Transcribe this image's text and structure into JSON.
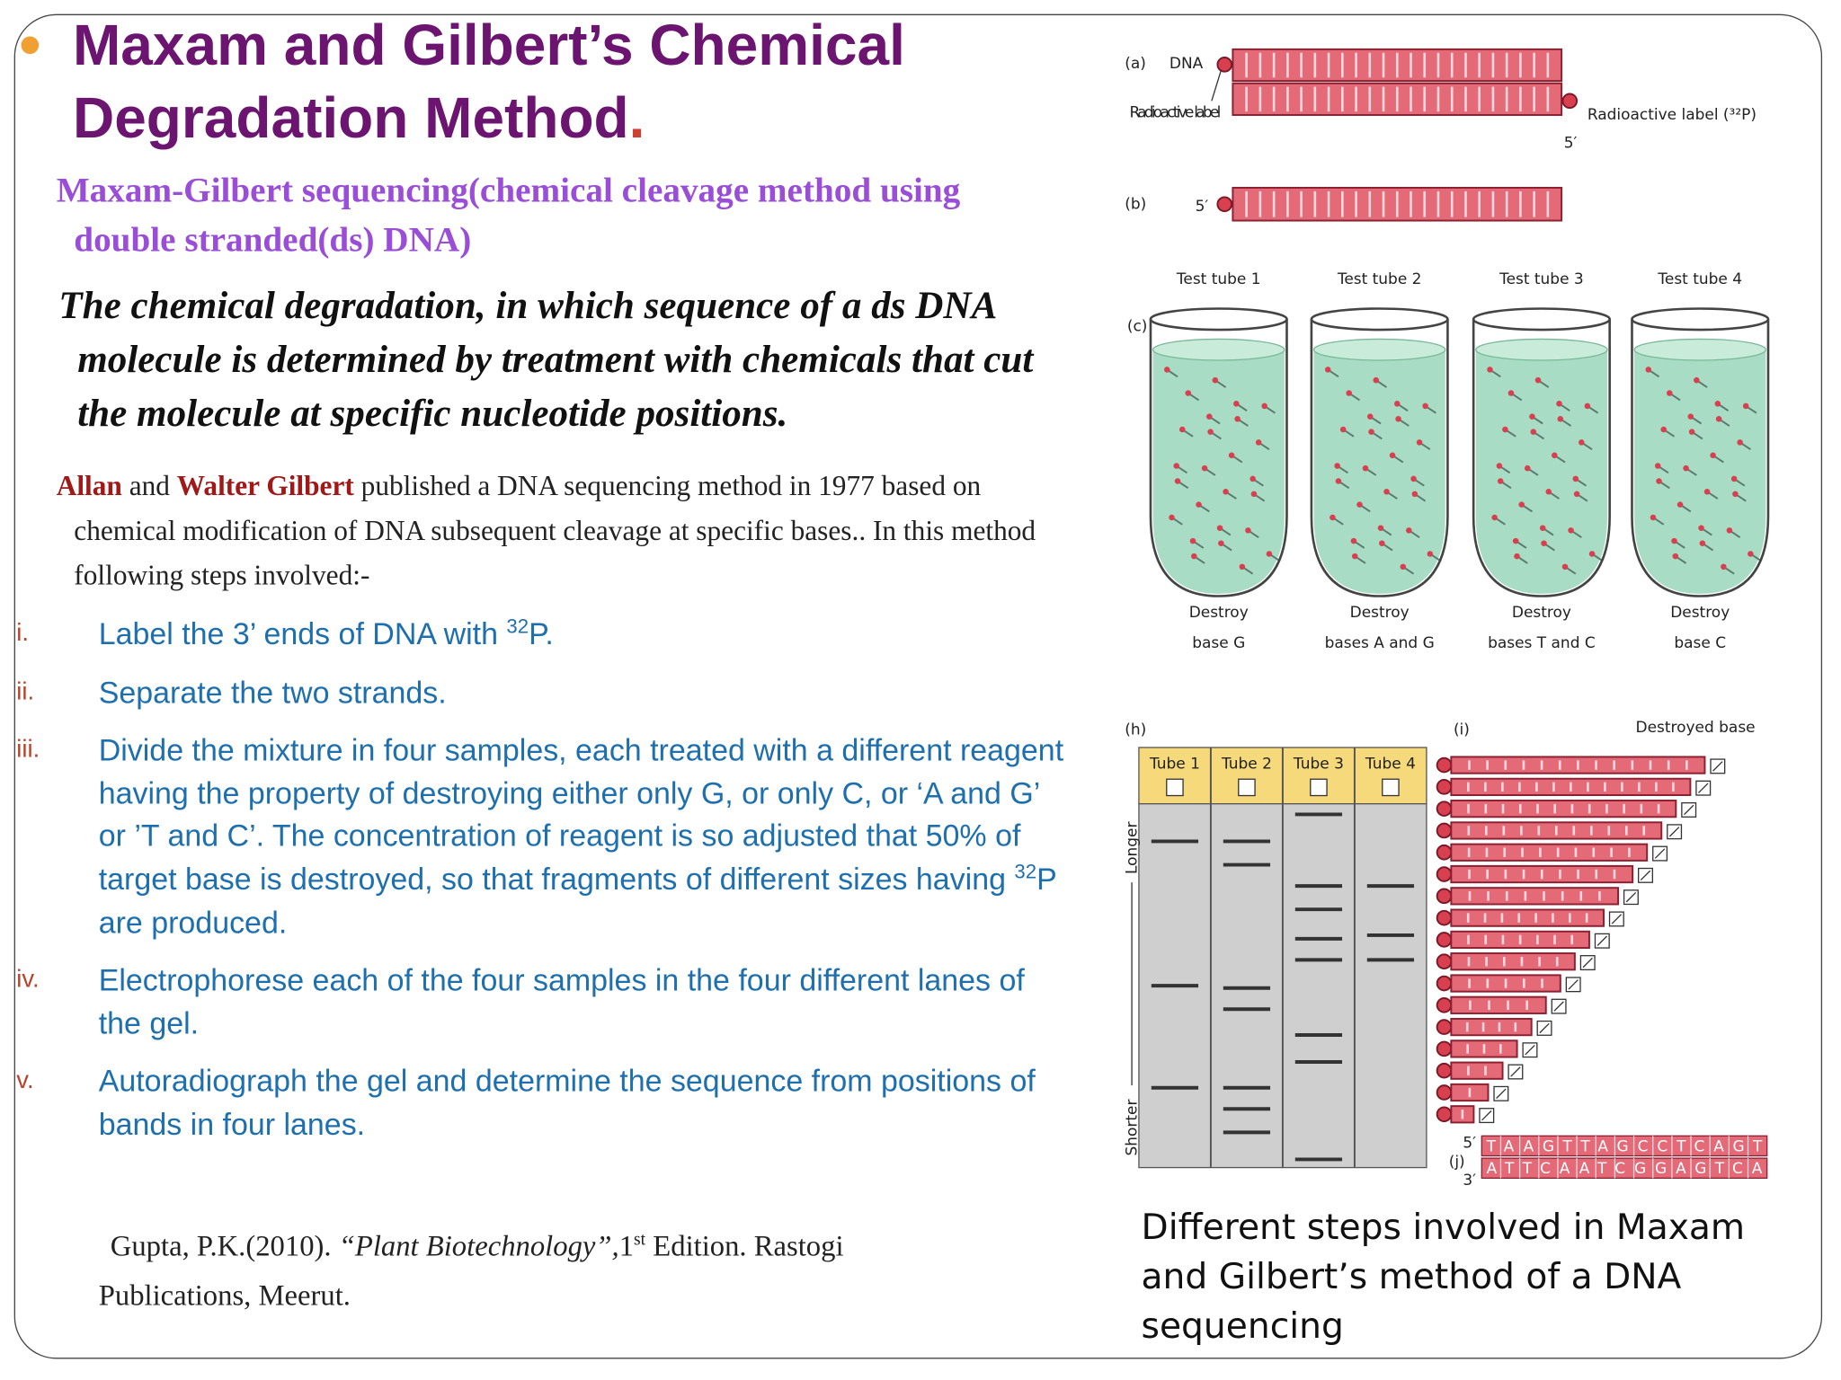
{
  "header": {
    "title": "Maxam and Gilbert’s Chemical Degradation Method",
    "title_end": "."
  },
  "subtitle": "Maxam-Gilbert sequencing(chemical cleavage method using double stranded(ds) DNA)",
  "definition": "The chemical degradation, in which sequence of a ds DNA molecule is determined by treatment with chemicals that cut the molecule at specific nucleotide positions.",
  "intro": {
    "name1": "Allan",
    "joiner": "and",
    "name2": "Walter Gilbert",
    "text": "published a DNA sequencing method in 1977 based on chemical modification of DNA subsequent cleavage at specific bases.. In this method following steps involved:-"
  },
  "steps": [
    {
      "numeral": "i.",
      "text": [
        "Label the 3’ ends of DNA with ",
        "32",
        "P."
      ]
    },
    {
      "numeral": "ii.",
      "text": [
        "Separate the two strands."
      ]
    },
    {
      "numeral": "iii.",
      "text": [
        "Divide the mixture in four samples, each treated with a different reagent having the property of destroying either only G, or only C, or ‘A and G’ or ’T and C’. The concentration of reagent is so adjusted that 50% of target base is destroyed, so that fragments of different sizes having ",
        "32",
        "P are produced."
      ]
    },
    {
      "numeral": "iv.",
      "text": [
        "Electrophorese each of the four samples in the four different lanes of the gel."
      ]
    },
    {
      "numeral": "v.",
      "text": [
        "Autoradiograph the gel and determine the sequence from positions of bands in four lanes."
      ]
    }
  ],
  "citation": {
    "author": "Gupta, P.K.(2010).",
    "book": "“Plant Biotechnology”,",
    "edition": "1",
    "edition_sup": "st",
    "rest": "Edition. Rastogi Publications, Meerut."
  },
  "figure": {
    "a": {
      "label": "(a)",
      "dna": "DNA",
      "left": "Radioactive label",
      "right": "Radioactive label (³²P)",
      "end": "5′"
    },
    "b": {
      "label": "(b)",
      "end": "5′"
    },
    "c": {
      "label": "(c)",
      "tubes": [
        "Test tube 1",
        "Test tube 2",
        "Test tube 3",
        "Test tube 4"
      ],
      "destroy": [
        "Destroy",
        "Destroy",
        "Destroy",
        "Destroy"
      ],
      "bases": [
        "base G",
        "bases A and G",
        "bases T and C",
        "base C"
      ]
    },
    "h": {
      "label": "(h)",
      "lanes": [
        "Tube 1",
        "Tube 2",
        "Tube 3",
        "Tube 4"
      ],
      "longer": "Longer",
      "shorter": "Shorter"
    },
    "i": {
      "label": "(i)",
      "destroyed": "Destroyed base"
    },
    "j": {
      "label": "(j)",
      "top_end": "5′",
      "bottom_end": "3′",
      "top": "TAAGTTAGCCTCAGT",
      "bottom": "ATTCAATCGGAGTCA"
    }
  },
  "caption": "Different steps involved in Maxam and Gilbert’s method of a DNA sequencing"
}
